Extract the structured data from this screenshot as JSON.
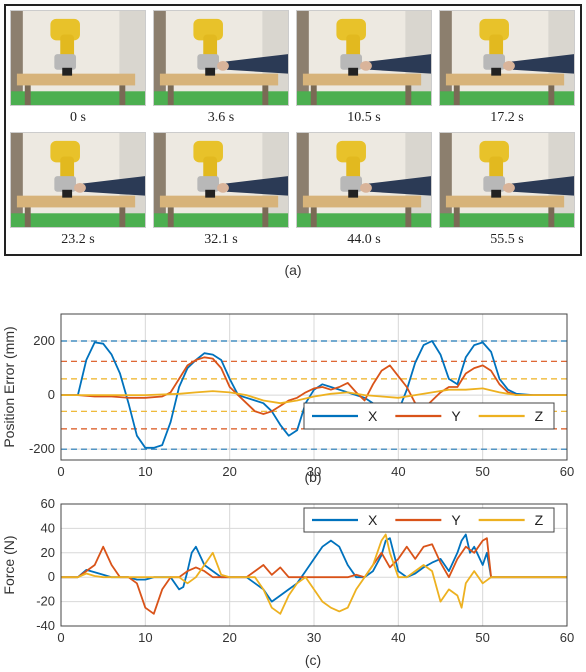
{
  "figure_a": {
    "label": "(a)",
    "frames": [
      {
        "time": "0 s"
      },
      {
        "time": "3.6 s"
      },
      {
        "time": "10.5 s"
      },
      {
        "time": "17.2 s"
      },
      {
        "time": "23.2 s"
      },
      {
        "time": "32.1 s"
      },
      {
        "time": "44.0 s"
      },
      {
        "time": "55.5 s"
      }
    ]
  },
  "chart_data": [
    {
      "type": "line",
      "panel_label": "(b)",
      "ylabel": "Position Error (mm)",
      "xlabel": "",
      "xlim": [
        0,
        60
      ],
      "ylim": [
        -240,
        300
      ],
      "xticks": [
        "0",
        "10",
        "20",
        "30",
        "40",
        "50",
        "60"
      ],
      "yticks": [
        "-200",
        "0",
        "200"
      ],
      "ytick_values": [
        -200,
        0,
        200
      ],
      "grid": true,
      "legend_position": "bottom-right",
      "reference_lines": [
        {
          "value": 200,
          "color": "#1f77b4"
        },
        {
          "value": -200,
          "color": "#1f77b4"
        },
        {
          "value": 125,
          "color": "#d95319"
        },
        {
          "value": -125,
          "color": "#d95319"
        },
        {
          "value": 60,
          "color": "#edb120"
        },
        {
          "value": -60,
          "color": "#edb120"
        }
      ],
      "series": [
        {
          "name": "X",
          "color": "#0072bd",
          "x": [
            0,
            2,
            3,
            4,
            5,
            6,
            7,
            8,
            9,
            10,
            11,
            12,
            13,
            14,
            15,
            16,
            17,
            18,
            19,
            20,
            21,
            22,
            23,
            24,
            25,
            26,
            27,
            28,
            29,
            30,
            31,
            32,
            33,
            34,
            35,
            36,
            37,
            38,
            39,
            40,
            41,
            42,
            43,
            44,
            45,
            46,
            47,
            48,
            49,
            50,
            51,
            52,
            53,
            54,
            56,
            58,
            60
          ],
          "y": [
            0,
            0,
            130,
            195,
            190,
            150,
            80,
            -30,
            -150,
            -195,
            -195,
            -185,
            -100,
            30,
            100,
            130,
            155,
            150,
            130,
            60,
            0,
            -10,
            -20,
            -30,
            -60,
            -110,
            -150,
            -130,
            -30,
            20,
            40,
            30,
            20,
            10,
            0,
            -10,
            -30,
            -70,
            -100,
            -60,
            20,
            120,
            185,
            200,
            150,
            60,
            40,
            140,
            185,
            195,
            160,
            60,
            20,
            5,
            0,
            0,
            0
          ]
        },
        {
          "name": "Y",
          "color": "#d95319",
          "x": [
            0,
            2,
            4,
            6,
            8,
            10,
            12,
            13,
            14,
            15,
            16,
            17,
            18,
            19,
            20,
            21,
            22,
            23,
            24,
            25,
            26,
            27,
            28,
            29,
            30,
            31,
            32,
            33,
            34,
            35,
            36,
            37,
            38,
            39,
            40,
            41,
            42,
            43,
            44,
            45,
            46,
            47,
            48,
            49,
            50,
            51,
            52,
            53,
            54,
            56,
            58,
            60
          ],
          "y": [
            0,
            0,
            -5,
            -5,
            -10,
            -10,
            -5,
            10,
            60,
            110,
            130,
            140,
            135,
            100,
            30,
            0,
            -30,
            -60,
            -70,
            -60,
            -40,
            -20,
            -10,
            10,
            25,
            30,
            20,
            30,
            45,
            10,
            -20,
            40,
            90,
            110,
            70,
            30,
            -30,
            -50,
            -20,
            10,
            30,
            30,
            80,
            100,
            110,
            90,
            40,
            10,
            0,
            0,
            0,
            0
          ]
        },
        {
          "name": "Z",
          "color": "#edb120",
          "x": [
            0,
            10,
            14,
            16,
            18,
            20,
            22,
            24,
            26,
            28,
            30,
            32,
            34,
            36,
            38,
            40,
            42,
            44,
            46,
            48,
            50,
            52,
            54,
            60
          ],
          "y": [
            0,
            0,
            5,
            10,
            15,
            10,
            0,
            -20,
            -30,
            -20,
            -5,
            5,
            10,
            0,
            -5,
            -10,
            0,
            10,
            20,
            20,
            25,
            10,
            0,
            0
          ]
        }
      ]
    },
    {
      "type": "line",
      "panel_label": "(c)",
      "ylabel": "Force (N)",
      "xlabel": "",
      "xlim": [
        0,
        60
      ],
      "ylim": [
        -40,
        60
      ],
      "xticks": [
        "0",
        "10",
        "20",
        "30",
        "40",
        "50",
        "60"
      ],
      "yticks": [
        "-40",
        "-20",
        "0",
        "20",
        "40",
        "60"
      ],
      "ytick_values": [
        -40,
        -20,
        0,
        20,
        40,
        60
      ],
      "grid": true,
      "legend_position": "top-right",
      "series": [
        {
          "name": "X",
          "color": "#0072bd",
          "x": [
            0,
            2,
            3,
            4,
            5,
            6,
            8,
            9,
            10,
            11,
            12,
            13,
            14,
            14.5,
            15,
            15.5,
            16,
            17,
            18,
            19,
            20,
            22,
            23,
            24,
            25,
            26,
            27,
            28,
            29,
            30,
            31,
            32,
            33,
            34,
            35,
            36,
            37,
            38,
            38.5,
            39,
            40,
            41,
            42,
            43,
            44,
            45,
            46,
            47,
            47.5,
            48,
            48.5,
            49,
            50,
            50.5,
            51,
            52,
            56,
            60
          ],
          "y": [
            0,
            0,
            6,
            4,
            2,
            0,
            0,
            -2,
            -2,
            0,
            0,
            0,
            -10,
            -8,
            5,
            20,
            25,
            10,
            5,
            0,
            0,
            0,
            -5,
            -10,
            -20,
            -15,
            -10,
            -5,
            5,
            15,
            25,
            30,
            25,
            10,
            0,
            0,
            5,
            18,
            30,
            32,
            5,
            0,
            3,
            8,
            12,
            15,
            5,
            20,
            30,
            35,
            20,
            25,
            10,
            20,
            0,
            0,
            0,
            0
          ]
        },
        {
          "name": "Y",
          "color": "#d95319",
          "x": [
            0,
            2,
            3,
            4,
            5,
            6,
            7,
            8,
            9,
            10,
            11,
            12,
            13,
            14,
            15,
            16,
            17,
            18,
            20,
            22,
            23,
            24,
            25,
            26,
            27,
            28,
            30,
            32,
            34,
            35,
            36,
            37,
            38,
            39,
            40,
            41,
            42,
            43,
            44,
            45,
            46,
            47,
            48,
            49,
            50,
            50.5,
            51,
            52,
            60
          ],
          "y": [
            0,
            0,
            5,
            10,
            25,
            10,
            0,
            0,
            -5,
            -25,
            -30,
            -10,
            0,
            0,
            5,
            8,
            5,
            0,
            0,
            0,
            5,
            10,
            2,
            8,
            0,
            0,
            0,
            0,
            0,
            2,
            0,
            10,
            20,
            8,
            15,
            25,
            15,
            25,
            27,
            12,
            0,
            15,
            25,
            20,
            30,
            32,
            0,
            0,
            0
          ]
        },
        {
          "name": "Z",
          "color": "#edb120",
          "x": [
            0,
            2,
            3,
            4,
            5,
            6,
            8,
            10,
            12,
            13,
            14,
            15,
            16,
            17,
            18,
            19,
            20,
            22,
            23,
            24,
            25,
            26,
            27,
            28,
            29,
            30,
            31,
            32,
            33,
            34,
            35,
            36,
            37,
            38,
            38.5,
            39,
            40,
            41,
            42,
            43,
            44,
            45,
            46,
            47,
            47.5,
            48,
            49,
            50,
            51,
            52,
            60
          ],
          "y": [
            0,
            0,
            3,
            1,
            0,
            0,
            0,
            0,
            0,
            0,
            0,
            -5,
            0,
            10,
            20,
            2,
            0,
            0,
            0,
            -10,
            -25,
            -30,
            -15,
            -5,
            0,
            -10,
            -20,
            -25,
            -28,
            -25,
            -10,
            0,
            10,
            30,
            35,
            20,
            0,
            0,
            5,
            10,
            5,
            -20,
            -10,
            -15,
            -25,
            -5,
            5,
            -5,
            0,
            0,
            0
          ]
        }
      ]
    }
  ]
}
